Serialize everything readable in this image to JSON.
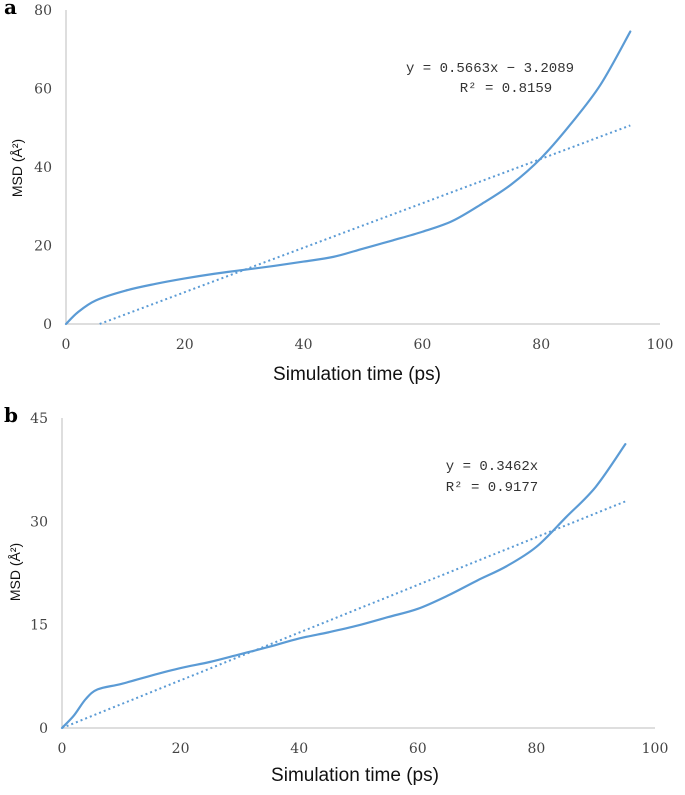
{
  "chart_data": [
    {
      "type": "line",
      "panel": "a",
      "xlabel": "Simulation time (ps)",
      "ylabel": "MSD (Å²)",
      "xlim": [
        0,
        100
      ],
      "ylim": [
        0,
        80
      ],
      "xticks": [
        0,
        20,
        40,
        60,
        80,
        100
      ],
      "yticks": [
        0,
        20,
        40,
        60,
        80
      ],
      "series": [
        {
          "name": "MSD",
          "x": [
            0,
            2,
            5,
            10,
            15,
            20,
            25,
            30,
            35,
            40,
            45,
            50,
            55,
            60,
            65,
            70,
            75,
            80,
            85,
            90,
            95
          ],
          "y": [
            0,
            3,
            6,
            8.5,
            10.2,
            11.6,
            12.8,
            13.8,
            14.8,
            15.9,
            17.1,
            19.2,
            21.3,
            23.5,
            26.2,
            30.6,
            35.6,
            42.3,
            51,
            61,
            74.5
          ]
        }
      ],
      "trendline": {
        "name": "Linear fit",
        "slope": 0.5663,
        "intercept": -3.2089,
        "x_start": 5.67,
        "x_end": 95,
        "equation": "y = 0.5663x − 3.2089",
        "r2": "R² = 0.8159"
      },
      "color": "#5b9bd5"
    },
    {
      "type": "line",
      "panel": "b",
      "xlabel": "Simulation time (ps)",
      "ylabel": "MSD (Å²)",
      "xlim": [
        0,
        100
      ],
      "ylim": [
        0,
        45
      ],
      "xticks": [
        0,
        20,
        40,
        60,
        80,
        100
      ],
      "yticks": [
        0,
        15,
        30,
        45
      ],
      "series": [
        {
          "name": "MSD",
          "x": [
            0,
            2,
            4,
            6,
            10,
            15,
            20,
            25,
            30,
            35,
            40,
            45,
            50,
            55,
            60,
            65,
            70,
            75,
            80,
            85,
            90,
            95
          ],
          "y": [
            0,
            1.8,
            4.2,
            5.6,
            6.4,
            7.6,
            8.7,
            9.6,
            10.7,
            11.8,
            13,
            13.9,
            14.9,
            16.1,
            17.3,
            19.2,
            21.4,
            23.5,
            26.3,
            30.6,
            35,
            41.2
          ]
        }
      ],
      "trendline": {
        "name": "Linear fit",
        "slope": 0.3462,
        "intercept": 0,
        "x_start": 0,
        "x_end": 95,
        "equation": "y = 0.3462x",
        "r2": "R² = 0.9177"
      },
      "color": "#5b9bd5"
    }
  ]
}
